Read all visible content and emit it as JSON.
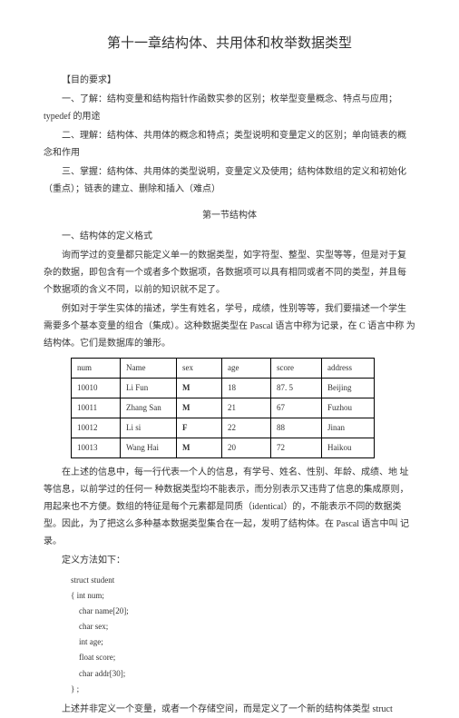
{
  "title": "第十一章结构体、共用体和枚举数据类型",
  "heading1": "【目的要求】",
  "p1": "一、了解：结构变量和结构指针作函数实参的区别；枚举型变量概念、特点与应用；typedef 的用途",
  "p2": "二、理解：结构体、共用体的概念和特点；类型说明和变量定义的区别；单向链表的概  念和作用",
  "p3": "三、掌握：结构体、共用体的类型说明，变量定义及使用；结构体数组的定义和初始化（重点）；链表的建立、删除和插入（难点）",
  "section1": "第一节结构体",
  "sub1": "一、结构体的定义格式",
  "p4": "询而学过的变量都只能定义单一的数据类型，如字符型、整型、实型等等，但是对于复  杂的数据，即包含有一个或者多个数据项，各数据项可以具有相同或者不同的类型，并且每  个数据项的含义不同，以前的知识就不足了。",
  "p5": "例如对于学生实体的描述，学生有姓名，学号，成绩，性别等等，我们要描述一个学生  需要多个基本变量的组合（集成）。这种数据类型在 Pascal 语言中称为记录，在 C 语言中称  为结构体。它们是数据库的雏形。",
  "table": {
    "headers": [
      "num",
      "Name",
      "sex",
      "age",
      "score",
      "address"
    ],
    "rows": [
      [
        "10010",
        "Li Fun",
        "M",
        "18",
        "87. 5",
        "Beijing"
      ],
      [
        "10011",
        "Zhang San",
        "M",
        "21",
        "67",
        "Fuzhou"
      ],
      [
        "10012",
        "Li si",
        "F",
        "22",
        "88",
        "Jinan"
      ],
      [
        "10013",
        "Wang Hai",
        "M",
        "20",
        "72",
        "Haikou"
      ]
    ]
  },
  "p6": "在上述的信息中，每一行代表一个人的信息，有学号、姓名、性别、年龄、成绩、地  址等信息，以前学过的任何一 种数据类型均不能表示，而分别表示又违背了信息的集成原则，用起来也不方便。数组的特征是每个元素都是同质（identical）的，不能表示不同的数据类  型。因此，为了把这么多种基本数据类型集合在一起，发明了结构体。在 Pascal 语言中叫  记录。",
  "p7": "定义方法如下：",
  "code": [
    "struct student",
    "{ int num;",
    "    char name[20];",
    "    char sex;",
    "    int age;",
    "    float score;",
    "    char addr[30];",
    "} ;"
  ],
  "p8": "上述并非定义一个变量，或者一个存储空间，而是定义了一个新的结构体类型 struct"
}
